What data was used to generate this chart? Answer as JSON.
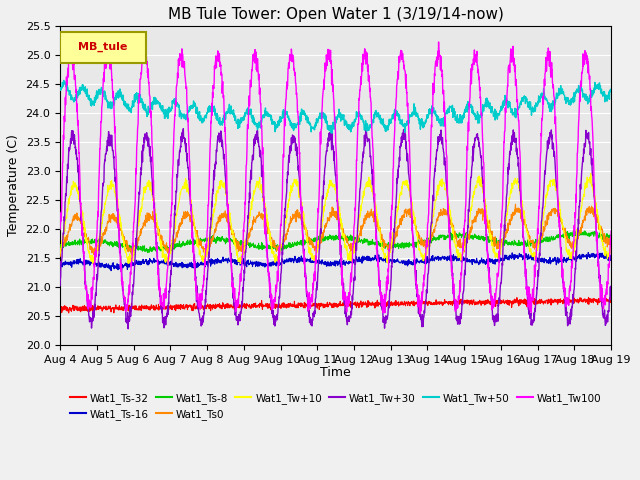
{
  "title": "MB Tule Tower: Open Water 1 (3/19/14-now)",
  "xlabel": "Time",
  "ylabel": "Temperature (C)",
  "ylim": [
    20.0,
    25.5
  ],
  "xlim": [
    0,
    15
  ],
  "x_tick_labels": [
    "Aug 4",
    "Aug 5",
    "Aug 6",
    "Aug 7",
    "Aug 8",
    "Aug 9",
    "Aug 10",
    "Aug 11",
    "Aug 12",
    "Aug 13",
    "Aug 14",
    "Aug 15",
    "Aug 16",
    "Aug 17",
    "Aug 18",
    "Aug 19"
  ],
  "series": {
    "Wat1_Ts-32": {
      "color": "#ff0000",
      "linewidth": 0.8
    },
    "Wat1_Ts-16": {
      "color": "#0000cc",
      "linewidth": 0.8
    },
    "Wat1_Ts-8": {
      "color": "#00cc00",
      "linewidth": 0.8
    },
    "Wat1_Ts0": {
      "color": "#ff8800",
      "linewidth": 0.8
    },
    "Wat1_Tw+10": {
      "color": "#ffff00",
      "linewidth": 0.8
    },
    "Wat1_Tw+30": {
      "color": "#8800cc",
      "linewidth": 1.0
    },
    "Wat1_Tw+50": {
      "color": "#00cccc",
      "linewidth": 1.0
    },
    "Wat1_Tw100": {
      "color": "#ff00ff",
      "linewidth": 1.0
    }
  },
  "legend_label": "MB_tule",
  "legend_label_color": "#cc0000",
  "legend_box_color": "#ffff99",
  "legend_box_edge": "#999900",
  "plot_bg_color": "#e8e8e8",
  "fig_bg_color": "#f0f0f0",
  "grid_color": "#ffffff",
  "title_fontsize": 11
}
